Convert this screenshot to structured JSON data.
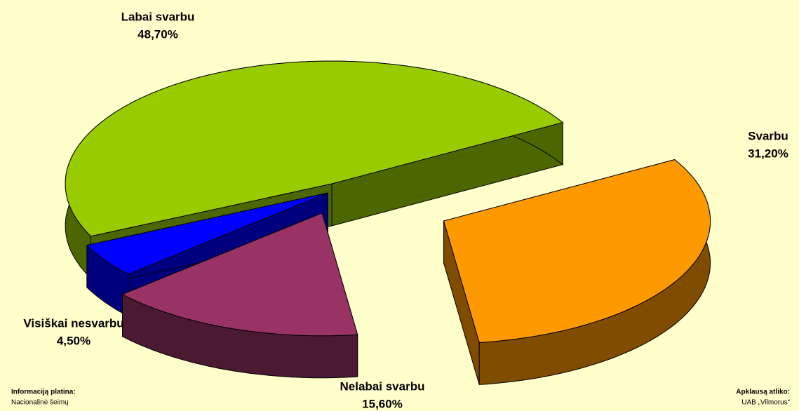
{
  "chart_data": {
    "type": "pie",
    "categories": [
      "Labai svarbu",
      "Svarbu",
      "Nelabai svarbu",
      "Visiškai nesvarbu"
    ],
    "values": [
      48.7,
      31.2,
      15.6,
      4.5
    ],
    "value_labels": [
      "48,70%",
      "31,20%",
      "15,60%",
      "4,50%"
    ],
    "colors": [
      "#99cc00",
      "#ff9900",
      "#993366",
      "#0000ff"
    ]
  },
  "footer": {
    "left_title": "Informaciją platina:",
    "left_text": "Nacionalinė šeimų",
    "right_title": "Apklausą atliko:",
    "right_text": "UAB „Vilmorus“"
  }
}
